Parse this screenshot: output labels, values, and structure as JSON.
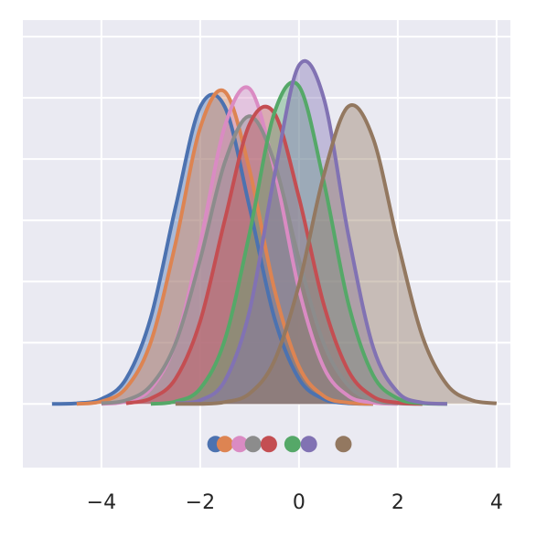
{
  "chart_data": {
    "type": "kde",
    "x": [
      -5,
      -4.5,
      -4,
      -3.5,
      -3,
      -2.5,
      -2,
      -1.5,
      -1,
      -0.5,
      0,
      0.5,
      1,
      1.5,
      2,
      2.5,
      3,
      3.5,
      4
    ],
    "series": [
      {
        "color": "#4c72b0",
        "values": [
          0,
          0.001,
          0.008,
          0.041,
          0.141,
          0.321,
          0.485,
          0.485,
          0.321,
          0.141,
          0.041,
          0.008,
          0.001,
          0,
          null,
          null,
          null,
          null,
          null
        ]
      },
      {
        "color": "#dd8452",
        "values": [
          null,
          0,
          0.004,
          0.026,
          0.101,
          0.262,
          0.451,
          0.51,
          0.382,
          0.188,
          0.061,
          0.013,
          0.002,
          0,
          null,
          null,
          null,
          null,
          null
        ]
      },
      {
        "color": "#da8bc3",
        "values": [
          null,
          null,
          0,
          0.004,
          0.025,
          0.1,
          0.263,
          0.454,
          0.515,
          0.384,
          0.187,
          0.06,
          0.013,
          0.002,
          0,
          null,
          null,
          null,
          null
        ]
      },
      {
        "color": "#8c8c8c",
        "values": [
          null,
          null,
          0.001,
          0.006,
          0.03,
          0.099,
          0.236,
          0.395,
          0.47,
          0.395,
          0.236,
          0.099,
          0.03,
          0.006,
          0.001,
          0,
          null,
          null,
          null
        ]
      },
      {
        "color": "#c44e52",
        "values": [
          null,
          null,
          null,
          0.001,
          0.009,
          0.041,
          0.135,
          0.301,
          0.457,
          0.475,
          0.337,
          0.163,
          0.054,
          0.012,
          0.002,
          0,
          null,
          null,
          null
        ]
      },
      {
        "color": "#55a868",
        "values": [
          null,
          null,
          null,
          null,
          0,
          0.004,
          0.025,
          0.105,
          0.279,
          0.475,
          0.519,
          0.364,
          0.164,
          0.047,
          0.009,
          0.001,
          0,
          null,
          null
        ]
      },
      {
        "color": "#8172b3",
        "values": [
          null,
          null,
          null,
          null,
          null,
          0.001,
          0.006,
          0.038,
          0.152,
          0.372,
          0.553,
          0.5,
          0.276,
          0.093,
          0.019,
          0.002,
          0,
          null,
          null
        ]
      },
      {
        "color": "#937860",
        "values": [
          null,
          null,
          null,
          null,
          null,
          0,
          0,
          0.003,
          0.017,
          0.07,
          0.195,
          0.373,
          0.486,
          0.434,
          0.264,
          0.11,
          0.031,
          0.006,
          0.001
        ]
      }
    ],
    "means": [
      -1.69,
      -1.5,
      -1.2,
      -0.93,
      -0.61,
      -0.13,
      0.2,
      0.9
    ],
    "xlim": [
      -5.59,
      4.28
    ],
    "ylim": [
      -0.104,
      0.627
    ],
    "xticks": [
      {
        "value": -4,
        "label": "−4"
      },
      {
        "value": -2,
        "label": "−2"
      },
      0,
      2,
      4
    ],
    "yticks": [
      0,
      0.1,
      0.2,
      0.3,
      0.4,
      0.5,
      0.6
    ],
    "grid": true
  }
}
